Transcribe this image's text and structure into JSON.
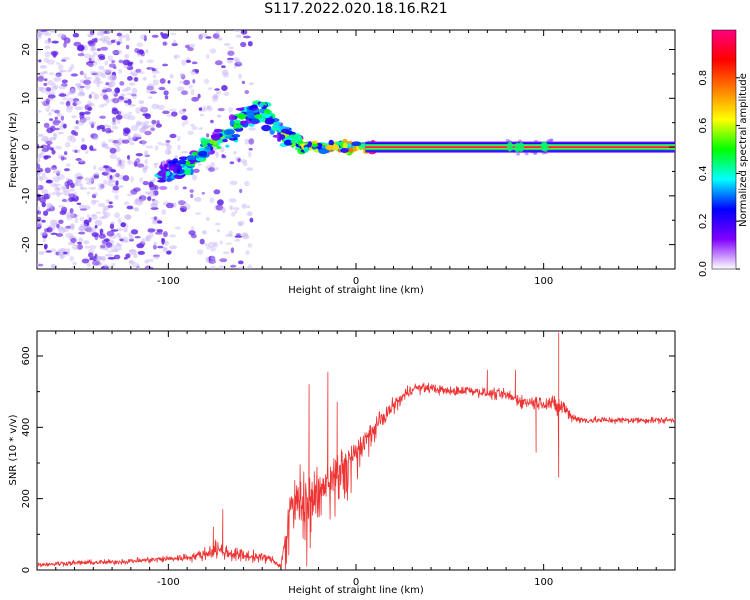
{
  "title": "S117.2022.020.18.16.R21",
  "chart_data": [
    {
      "type": "heatmap",
      "xlabel": "Height of straight line (km)",
      "ylabel": "Frequency (Hz)",
      "xlim": [
        -170,
        170
      ],
      "ylim": [
        -25,
        24
      ],
      "xticks": [
        -100,
        0,
        100
      ],
      "yticks": [
        -20,
        -10,
        0,
        10,
        20
      ],
      "colorbar": {
        "label": "Normalized spectral amplitude",
        "range": [
          0,
          1
        ],
        "ticks": [
          0.0,
          0.2,
          0.4,
          0.6,
          0.8
        ],
        "colors": [
          "#ffffff",
          "#7f00ff",
          "#0000ff",
          "#00ffff",
          "#00ff00",
          "#ffff00",
          "#ff8000",
          "#ff0000",
          "#ff007f"
        ]
      },
      "ridge": [
        {
          "x": -100,
          "f": -5.5,
          "a": 0.35
        },
        {
          "x": -90,
          "f": -4,
          "a": 0.45
        },
        {
          "x": -80,
          "f": 0,
          "a": 0.5
        },
        {
          "x": -70,
          "f": 2,
          "a": 0.5
        },
        {
          "x": -60,
          "f": 6,
          "a": 0.45
        },
        {
          "x": -50,
          "f": 7,
          "a": 0.45
        },
        {
          "x": -40,
          "f": 3,
          "a": 0.5
        },
        {
          "x": -30,
          "f": 0.5,
          "a": 0.55
        },
        {
          "x": -20,
          "f": 0,
          "a": 0.6
        },
        {
          "x": -10,
          "f": 0,
          "a": 0.65
        },
        {
          "x": 0,
          "f": 0,
          "a": 0.75
        },
        {
          "x": 10,
          "f": 0,
          "a": 0.95
        },
        {
          "x": 170,
          "f": 0,
          "a": 0.95
        }
      ]
    },
    {
      "type": "line",
      "xlabel": "Height of straight line (km)",
      "ylabel": "SNR (10 * v/v)",
      "xlim": [
        -170,
        170
      ],
      "ylim": [
        0,
        670
      ],
      "xticks": [
        -100,
        0,
        100
      ],
      "yticks": [
        0,
        200,
        400,
        600
      ],
      "color": "#ee3333",
      "series": [
        {
          "x": [
            -170,
            -150,
            -130,
            -110,
            -90,
            -80,
            -75,
            -70,
            -60,
            -50,
            -45,
            -40,
            -35,
            -30,
            -25,
            -20,
            -15,
            -10,
            -5,
            0,
            5,
            10,
            20,
            30,
            40,
            50,
            60,
            70,
            80,
            90,
            100,
            105,
            108,
            110,
            115,
            120,
            140,
            170
          ],
          "y": [
            15,
            20,
            22,
            28,
            35,
            45,
            60,
            50,
            40,
            35,
            30,
            10,
            180,
            230,
            200,
            220,
            260,
            280,
            310,
            330,
            370,
            400,
            460,
            510,
            510,
            500,
            505,
            495,
            490,
            470,
            470,
            465,
            450,
            460,
            430,
            420,
            420,
            420
          ],
          "noise": [
            7,
            8,
            8,
            10,
            12,
            20,
            30,
            25,
            20,
            15,
            12,
            8,
            60,
            70,
            70,
            60,
            55,
            50,
            40,
            35,
            30,
            28,
            25,
            18,
            15,
            15,
            15,
            15,
            20,
            20,
            25,
            25,
            40,
            30,
            15,
            12,
            10,
            10
          ],
          "spikes": [
            [
              -71,
              170
            ],
            [
              -76,
              120
            ],
            [
              -25,
              520
            ],
            [
              -15,
              555
            ],
            [
              -10,
              470
            ],
            [
              108,
              665
            ],
            [
              108,
              260
            ],
            [
              96,
              330
            ],
            [
              85,
              560
            ],
            [
              70,
              560
            ]
          ]
        }
      ]
    }
  ]
}
